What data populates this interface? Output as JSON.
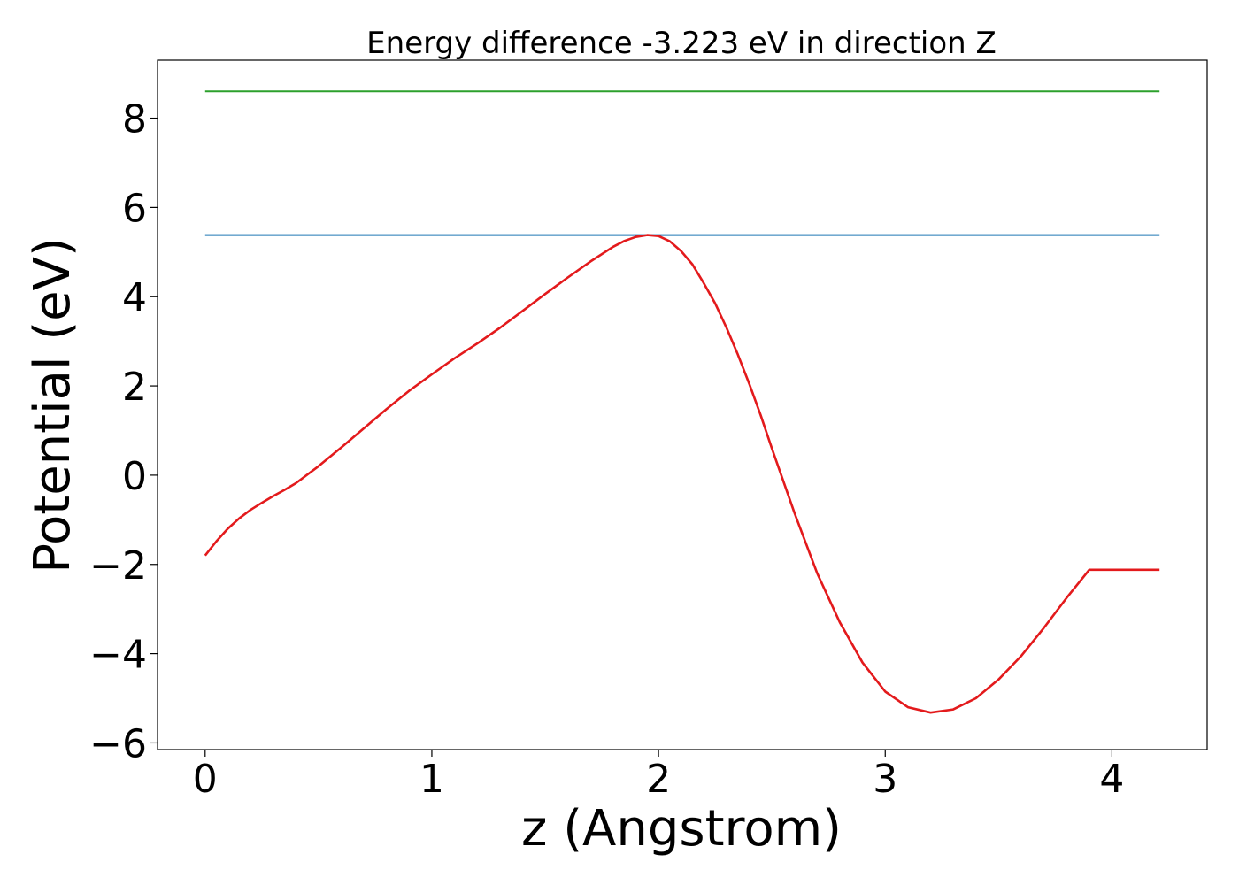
{
  "chart_data": {
    "type": "line",
    "title": "Energy difference -3.223 eV in direction Z",
    "xlabel": "z (Angstrom)",
    "ylabel": "Potential (eV)",
    "xlim": [
      -0.21,
      4.42
    ],
    "ylim": [
      -6.15,
      9.3
    ],
    "xticks": [
      0,
      1,
      2,
      3,
      4
    ],
    "xtick_labels": [
      "0",
      "1",
      "2",
      "3",
      "4"
    ],
    "yticks": [
      -6,
      -4,
      -2,
      0,
      2,
      4,
      6,
      8
    ],
    "ytick_labels": [
      "−6",
      "−4",
      "−2",
      "0",
      "2",
      "4",
      "6",
      "8"
    ],
    "grid": false,
    "series": [
      {
        "color": "#2ca02c",
        "x": [
          0,
          4.21
        ],
        "y": [
          8.6,
          8.6
        ]
      },
      {
        "color": "#1f77b4",
        "x": [
          0,
          4.21
        ],
        "y": [
          5.38,
          5.38
        ]
      },
      {
        "color": "#e31a1c",
        "x": [
          0,
          0.05,
          0.1,
          0.15,
          0.2,
          0.25,
          0.3,
          0.35,
          0.4,
          0.5,
          0.6,
          0.7,
          0.8,
          0.9,
          1.0,
          1.1,
          1.2,
          1.3,
          1.4,
          1.5,
          1.6,
          1.7,
          1.8,
          1.85,
          1.9,
          1.95,
          2.0,
          2.05,
          2.1,
          2.15,
          2.2,
          2.25,
          2.3,
          2.35,
          2.4,
          2.45,
          2.5,
          2.6,
          2.7,
          2.8,
          2.9,
          3.0,
          3.1,
          3.2,
          3.3,
          3.4,
          3.5,
          3.6,
          3.7,
          3.8,
          3.9,
          4.0,
          4.1,
          4.21
        ],
        "y": [
          -1.8,
          -1.48,
          -1.2,
          -0.97,
          -0.78,
          -0.62,
          -0.47,
          -0.33,
          -0.18,
          0.2,
          0.62,
          1.05,
          1.48,
          1.89,
          2.26,
          2.62,
          2.95,
          3.3,
          3.68,
          4.06,
          4.43,
          4.79,
          5.12,
          5.25,
          5.34,
          5.38,
          5.36,
          5.24,
          5.02,
          4.72,
          4.3,
          3.85,
          3.3,
          2.7,
          2.05,
          1.35,
          0.6,
          -0.85,
          -2.2,
          -3.3,
          -4.2,
          -4.85,
          -5.2,
          -5.32,
          -5.25,
          -5.0,
          -4.58,
          -4.05,
          -3.42,
          -2.75,
          -2.12,
          -2.12,
          -2.12,
          -2.12
        ]
      }
    ]
  }
}
